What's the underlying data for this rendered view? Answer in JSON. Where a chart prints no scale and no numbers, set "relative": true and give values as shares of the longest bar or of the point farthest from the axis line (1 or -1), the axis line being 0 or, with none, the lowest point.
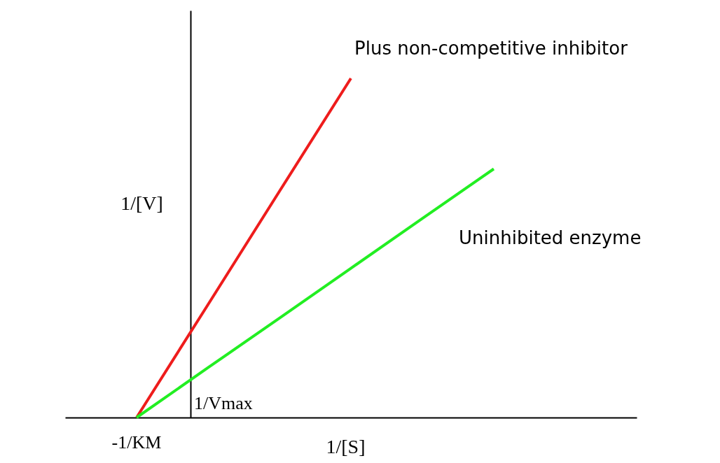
{
  "chart_data": {
    "type": "line",
    "relative": true,
    "xlabel": "1/[S]",
    "ylabel": "1/[V]",
    "marker": "none",
    "grid": false,
    "categories": [
      null,
      null,
      null,
      null,
      null,
      null,
      null,
      null,
      null
    ],
    "series": [
      {
        "name": "Plus non-competitive inhibitor",
        "color": "#ee1c1c",
        "values": [
          null,
          0,
          0.333,
          0.667,
          1,
          null,
          null,
          null,
          null
        ]
      },
      {
        "name": "Uninhibited enzyme",
        "color": "#22ee22",
        "values": [
          null,
          0,
          0.147,
          0.293,
          0.44,
          0.587,
          0.733,
          null,
          null
        ]
      }
    ],
    "annotations": [
      "-1/KM",
      "1/Vmax"
    ]
  }
}
